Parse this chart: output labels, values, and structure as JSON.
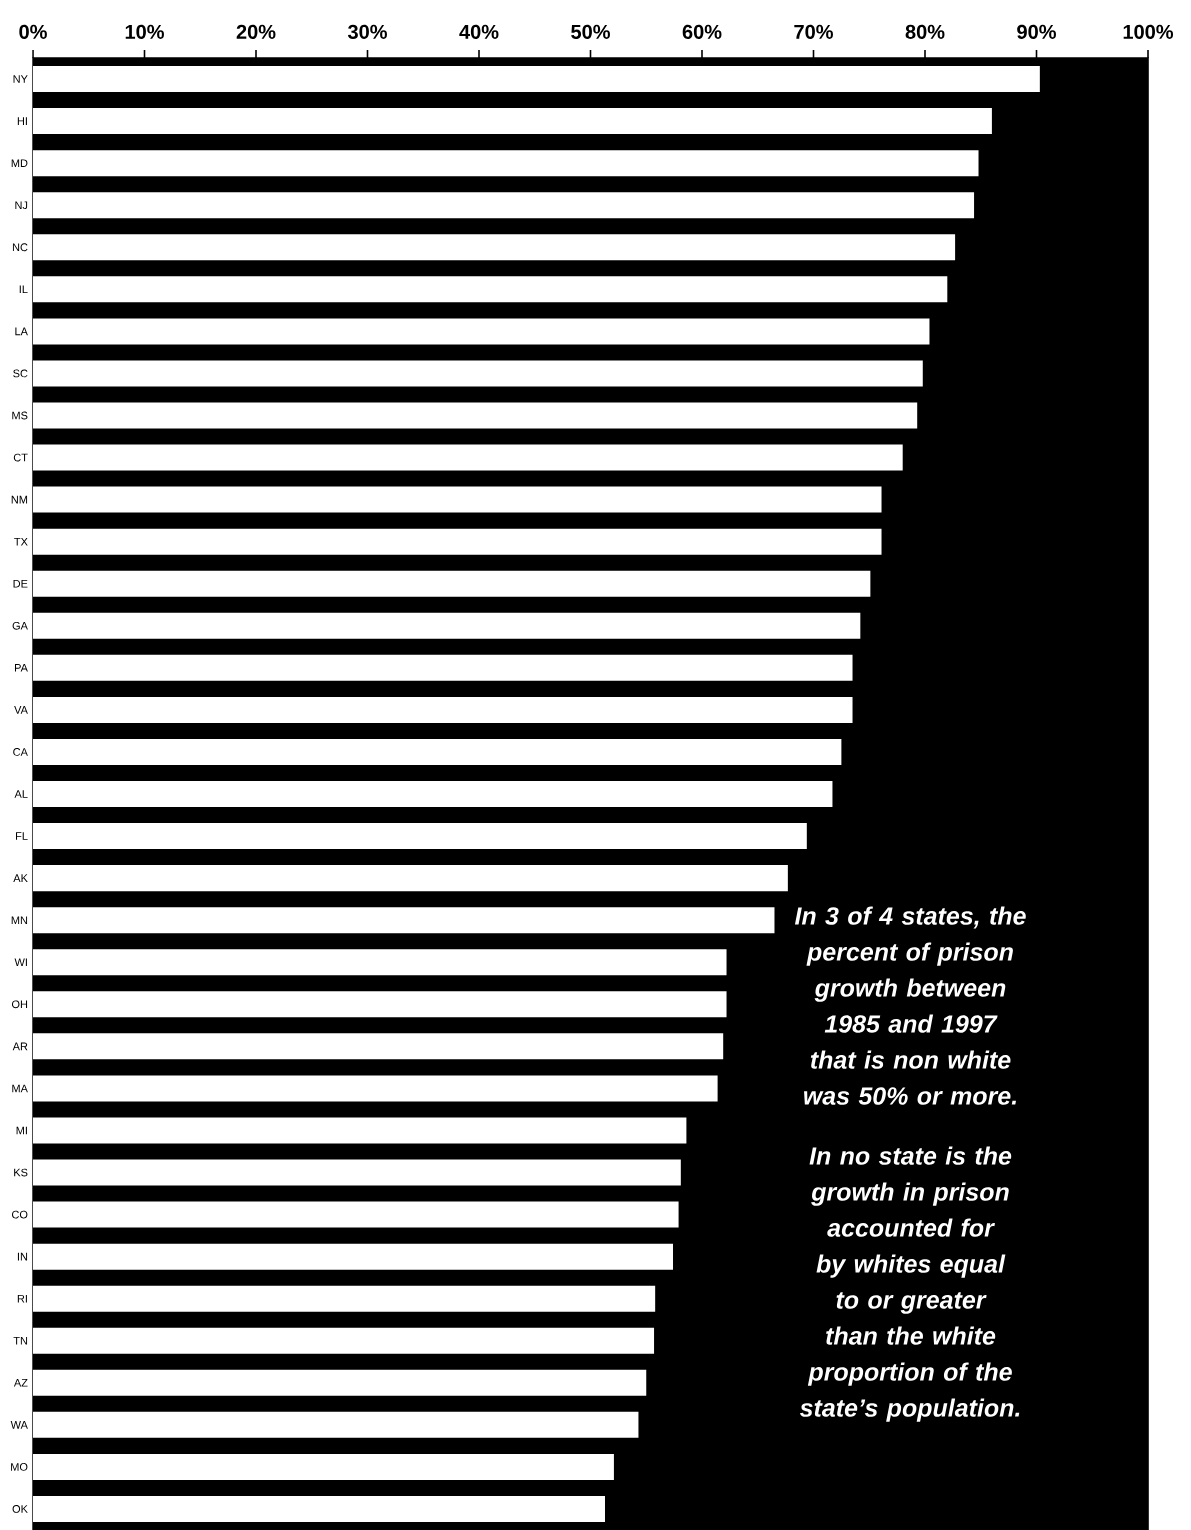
{
  "chart_data": {
    "type": "bar",
    "orientation": "horizontal",
    "color": "#ffffff",
    "categories": [
      "NY",
      "HI",
      "MD",
      "NJ",
      "NC",
      "IL",
      "LA",
      "SC",
      "MS",
      "CT",
      "NM",
      "TX",
      "DE",
      "GA",
      "PA",
      "VA",
      "CA",
      "AL",
      "FL",
      "AK",
      "MN",
      "WI",
      "OH",
      "AR",
      "MA",
      "MI",
      "KS",
      "CO",
      "IN",
      "RI",
      "TN",
      "AZ",
      "WA",
      "MO",
      "OK"
    ],
    "values": [
      90.3,
      86.0,
      84.8,
      84.4,
      82.7,
      82.0,
      80.4,
      79.8,
      79.3,
      78.0,
      76.1,
      76.1,
      75.1,
      74.2,
      73.5,
      73.5,
      72.5,
      71.7,
      69.4,
      67.7,
      66.5,
      62.2,
      62.2,
      61.9,
      61.4,
      58.6,
      58.1,
      57.9,
      57.4,
      55.8,
      55.7,
      55.0,
      54.3,
      52.1,
      51.3
    ],
    "xlim": [
      0,
      100
    ],
    "xticks": [
      {
        "value": 0,
        "label": "0%"
      },
      {
        "value": 10,
        "label": "10%"
      },
      {
        "value": 20,
        "label": "20%"
      },
      {
        "value": 30,
        "label": "30%"
      },
      {
        "value": 40,
        "label": "40%"
      },
      {
        "value": 50,
        "label": "50%"
      },
      {
        "value": 60,
        "label": "60%"
      },
      {
        "value": 70,
        "label": "70%"
      },
      {
        "value": 80,
        "label": "80%"
      },
      {
        "value": 90,
        "label": "90%"
      },
      {
        "value": 100,
        "label": "100%"
      }
    ],
    "annotations": [
      "In 3 of 4 states, the percent of prison growth between 1985 and 1997 that is non white was 50% or more.",
      "In no state is the growth in prison accounted for by whites equal to or greater than the white proportion of the state’s population."
    ]
  }
}
